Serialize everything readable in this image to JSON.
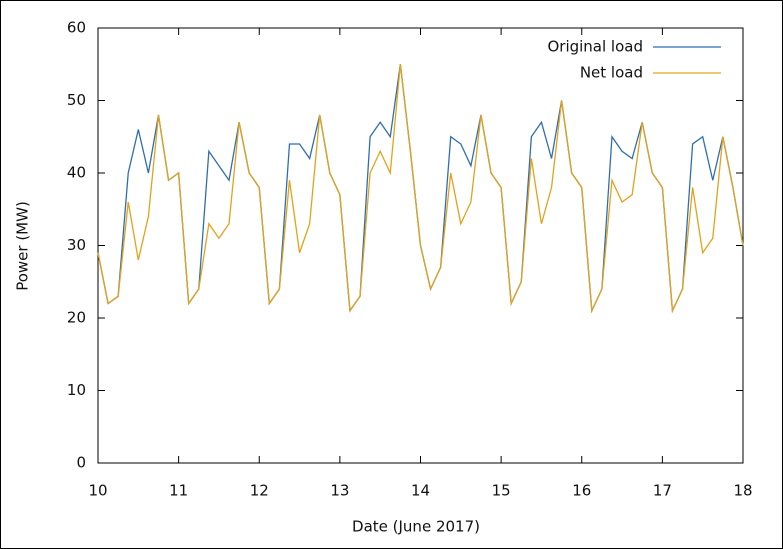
{
  "chart_data": {
    "type": "line",
    "x_label": "Date (June 2017)",
    "y_label": "Power (MW)",
    "x": [
      10,
      10.125,
      10.25,
      10.375,
      10.5,
      10.625,
      10.75,
      10.875,
      11,
      11.125,
      11.25,
      11.375,
      11.5,
      11.625,
      11.75,
      11.875,
      12,
      12.125,
      12.25,
      12.375,
      12.5,
      12.625,
      12.75,
      12.875,
      13,
      13.125,
      13.25,
      13.375,
      13.5,
      13.625,
      13.75,
      13.875,
      14,
      14.125,
      14.25,
      14.375,
      14.5,
      14.625,
      14.75,
      14.875,
      15,
      15.125,
      15.25,
      15.375,
      15.5,
      15.625,
      15.75,
      15.875,
      16,
      16.125,
      16.25,
      16.375,
      16.5,
      16.625,
      16.75,
      16.875,
      17,
      17.125,
      17.25,
      17.375,
      17.5,
      17.625,
      17.75,
      17.875,
      18
    ],
    "series": [
      {
        "name": "Original load",
        "color": "#2f6db3",
        "values": [
          29,
          22,
          23,
          40,
          46,
          40,
          48,
          39,
          40,
          22,
          24,
          43,
          41,
          39,
          47,
          40,
          38,
          22,
          24,
          44,
          44,
          42,
          48,
          40,
          37,
          21,
          23,
          45,
          47,
          45,
          55,
          43,
          30,
          24,
          27,
          45,
          44,
          41,
          48,
          40,
          38,
          22,
          25,
          45,
          47,
          42,
          50,
          40,
          38,
          21,
          24,
          45,
          43,
          42,
          47,
          40,
          38,
          21,
          24,
          44,
          45,
          39,
          45,
          38,
          30
        ]
      },
      {
        "name": "Net load",
        "color": "#e3a21a",
        "values": [
          29,
          22,
          23,
          36,
          28,
          34,
          48,
          39,
          40,
          22,
          24,
          33,
          31,
          33,
          47,
          40,
          38,
          22,
          24,
          39,
          29,
          33,
          48,
          40,
          37,
          21,
          23,
          40,
          43,
          40,
          55,
          43,
          30,
          24,
          27,
          40,
          33,
          36,
          48,
          40,
          38,
          22,
          25,
          42,
          33,
          38,
          50,
          40,
          38,
          21,
          24,
          39,
          36,
          37,
          47,
          40,
          38,
          21,
          24,
          38,
          29,
          31,
          45,
          38,
          30
        ]
      }
    ],
    "xlim": [
      10,
      18
    ],
    "xticks": [
      10,
      11,
      12,
      13,
      14,
      15,
      16,
      17,
      18
    ],
    "ylim": [
      0,
      60
    ],
    "yticks": [
      0,
      10,
      20,
      30,
      40,
      50,
      60
    ],
    "legend": "upper right"
  }
}
